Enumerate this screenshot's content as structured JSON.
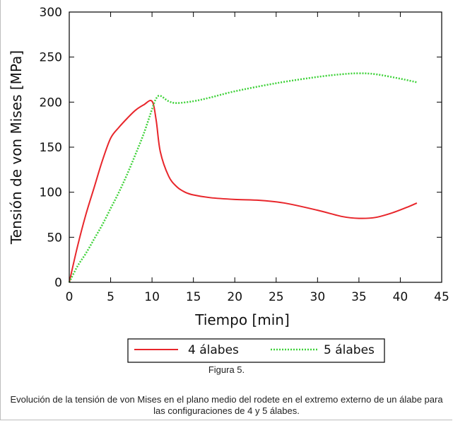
{
  "chart_data": {
    "type": "line",
    "xlabel": "Tiempo [min]",
    "ylabel": "Tensión de von Mises [MPa]",
    "xlim": [
      0,
      45
    ],
    "ylim": [
      0,
      300
    ],
    "xticks": [
      0,
      5,
      10,
      15,
      20,
      25,
      30,
      35,
      40,
      45
    ],
    "yticks": [
      0,
      50,
      100,
      150,
      200,
      250,
      300
    ],
    "grid": false,
    "legend_position": "bottom-outside",
    "series": [
      {
        "name": "4 álabes",
        "color": "#e8262b",
        "style": "solid",
        "points": [
          [
            0,
            0
          ],
          [
            1,
            40
          ],
          [
            2,
            75
          ],
          [
            3,
            105
          ],
          [
            4,
            135
          ],
          [
            5,
            160
          ],
          [
            6,
            172
          ],
          [
            7,
            182
          ],
          [
            8,
            191
          ],
          [
            9,
            197
          ],
          [
            10,
            201
          ],
          [
            10.5,
            180
          ],
          [
            11,
            145
          ],
          [
            12,
            118
          ],
          [
            13,
            106
          ],
          [
            14,
            100
          ],
          [
            15,
            97
          ],
          [
            17,
            94
          ],
          [
            20,
            92
          ],
          [
            23,
            91
          ],
          [
            26,
            88
          ],
          [
            30,
            80
          ],
          [
            33,
            73
          ],
          [
            35,
            71
          ],
          [
            37,
            72
          ],
          [
            39,
            77
          ],
          [
            41,
            84
          ],
          [
            42,
            88
          ]
        ]
      },
      {
        "name": "5 álabes",
        "color": "#3fd23a",
        "style": "dotted",
        "points": [
          [
            0,
            0
          ],
          [
            1,
            18
          ],
          [
            2,
            32
          ],
          [
            3,
            48
          ],
          [
            4,
            64
          ],
          [
            5,
            82
          ],
          [
            6,
            100
          ],
          [
            7,
            120
          ],
          [
            8,
            142
          ],
          [
            9,
            165
          ],
          [
            10,
            192
          ],
          [
            10.5,
            204
          ],
          [
            11,
            207
          ],
          [
            12,
            201
          ],
          [
            13,
            199
          ],
          [
            15,
            201
          ],
          [
            17,
            205
          ],
          [
            20,
            212
          ],
          [
            25,
            221
          ],
          [
            30,
            228
          ],
          [
            33,
            231
          ],
          [
            35,
            232
          ],
          [
            37,
            231
          ],
          [
            40,
            226
          ],
          [
            42,
            222
          ]
        ]
      }
    ]
  },
  "caption": {
    "label": "Figura 5.",
    "text": "Evolución de la tensión de von Mises en el plano medio del rodete en el extremo externo de un álabe para las configuraciones de 4 y 5 álabes."
  }
}
